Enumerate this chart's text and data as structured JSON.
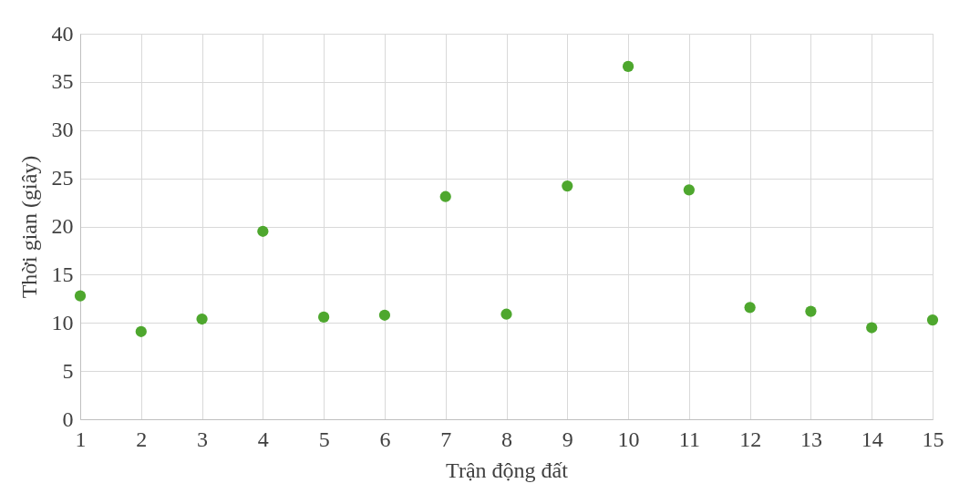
{
  "chart_data": {
    "type": "scatter",
    "xlabel": "Trận động đất",
    "ylabel": "Thời gian (giây)",
    "x": [
      1,
      2,
      3,
      4,
      5,
      6,
      7,
      8,
      9,
      10,
      11,
      12,
      13,
      14,
      15
    ],
    "series": [
      {
        "color": "#4ea72e",
        "values": [
          12.8,
          9.1,
          10.4,
          19.5,
          10.6,
          10.8,
          23.1,
          10.9,
          24.2,
          36.6,
          23.8,
          11.6,
          11.2,
          9.5,
          10.3
        ]
      }
    ],
    "xlim": [
      1,
      15
    ],
    "xticks": [
      1,
      2,
      3,
      4,
      5,
      6,
      7,
      8,
      9,
      10,
      11,
      12,
      13,
      14,
      15
    ],
    "ylim": [
      0,
      40
    ],
    "yticks": [
      0,
      5,
      10,
      15,
      20,
      25,
      30,
      35,
      40
    ],
    "grid": true,
    "marker": "circle"
  }
}
